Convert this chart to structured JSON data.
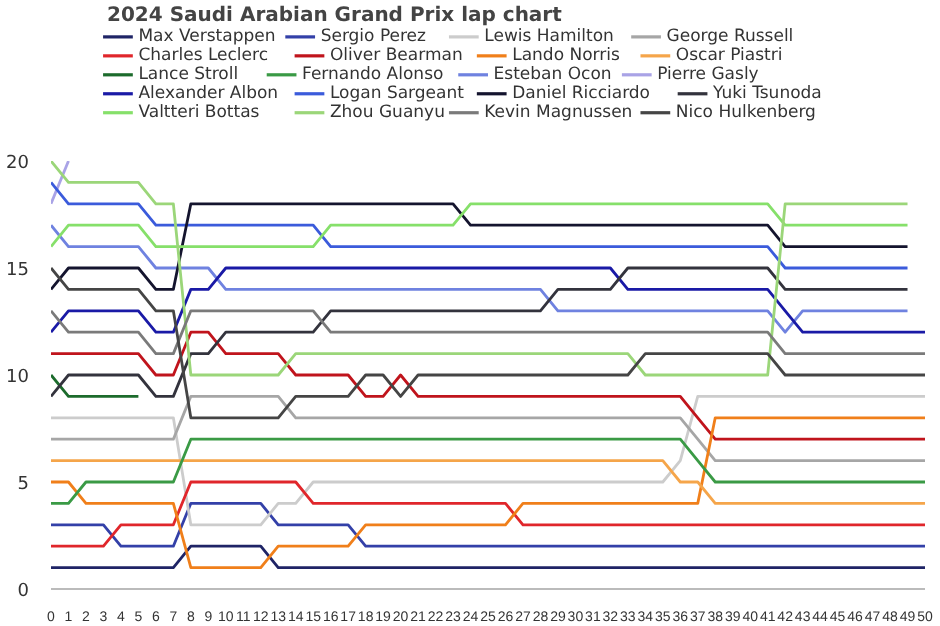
{
  "chart_data": {
    "type": "line",
    "title": "2024 Saudi Arabian Grand Prix lap chart",
    "legend": "top",
    "line_style": "solid",
    "x": [
      0,
      1,
      2,
      3,
      4,
      5,
      6,
      7,
      8,
      9,
      10,
      11,
      12,
      13,
      14,
      15,
      16,
      17,
      18,
      19,
      20,
      21,
      22,
      23,
      24,
      25,
      26,
      27,
      28,
      29,
      30,
      31,
      32,
      33,
      34,
      35,
      36,
      37,
      38,
      39,
      40,
      41,
      42,
      43,
      44,
      45,
      46,
      47,
      48,
      49,
      50
    ],
    "xlim": [
      0,
      50
    ],
    "xticks": [
      0,
      1,
      2,
      3,
      4,
      5,
      6,
      7,
      8,
      9,
      10,
      11,
      12,
      13,
      14,
      15,
      16,
      17,
      18,
      19,
      20,
      21,
      22,
      23,
      24,
      25,
      26,
      27,
      28,
      29,
      30,
      31,
      32,
      33,
      34,
      35,
      36,
      37,
      38,
      39,
      40,
      41,
      42,
      43,
      44,
      45,
      46,
      47,
      48,
      49,
      50
    ],
    "ylim": [
      0,
      20
    ],
    "yticks": [
      0,
      5,
      10,
      15,
      20
    ],
    "series": [
      {
        "name": "Max Verstappen",
        "color": "#1f2466",
        "values": [
          1,
          1,
          1,
          1,
          1,
          1,
          1,
          1,
          2,
          2,
          2,
          2,
          2,
          1,
          1,
          1,
          1,
          1,
          1,
          1,
          1,
          1,
          1,
          1,
          1,
          1,
          1,
          1,
          1,
          1,
          1,
          1,
          1,
          1,
          1,
          1,
          1,
          1,
          1,
          1,
          1,
          1,
          1,
          1,
          1,
          1,
          1,
          1,
          1,
          1,
          1
        ]
      },
      {
        "name": "Sergio Perez",
        "color": "#3340a8",
        "values": [
          3,
          3,
          3,
          3,
          2,
          2,
          2,
          2,
          4,
          4,
          4,
          4,
          4,
          3,
          3,
          3,
          3,
          3,
          2,
          2,
          2,
          2,
          2,
          2,
          2,
          2,
          2,
          2,
          2,
          2,
          2,
          2,
          2,
          2,
          2,
          2,
          2,
          2,
          2,
          2,
          2,
          2,
          2,
          2,
          2,
          2,
          2,
          2,
          2,
          2,
          2
        ]
      },
      {
        "name": "Lewis Hamilton",
        "color": "#cccccc",
        "values": [
          8,
          8,
          8,
          8,
          8,
          8,
          8,
          8,
          3,
          3,
          3,
          3,
          3,
          4,
          4,
          5,
          5,
          5,
          5,
          5,
          5,
          5,
          5,
          5,
          5,
          5,
          5,
          5,
          5,
          5,
          5,
          5,
          5,
          5,
          5,
          5,
          6,
          9,
          9,
          9,
          9,
          9,
          9,
          9,
          9,
          9,
          9,
          9,
          9,
          9,
          9
        ]
      },
      {
        "name": "George Russell",
        "color": "#a6a6a6",
        "values": [
          7,
          7,
          7,
          7,
          7,
          7,
          7,
          7,
          9,
          9,
          9,
          9,
          9,
          9,
          8,
          8,
          8,
          8,
          8,
          8,
          8,
          8,
          8,
          8,
          8,
          8,
          8,
          8,
          8,
          8,
          8,
          8,
          8,
          8,
          8,
          8,
          8,
          7,
          6,
          6,
          6,
          6,
          6,
          6,
          6,
          6,
          6,
          6,
          6,
          6,
          6
        ]
      },
      {
        "name": "Charles Leclerc",
        "color": "#e0262b",
        "values": [
          2,
          2,
          2,
          2,
          3,
          3,
          3,
          3,
          5,
          5,
          5,
          5,
          5,
          5,
          5,
          4,
          4,
          4,
          4,
          4,
          4,
          4,
          4,
          4,
          4,
          4,
          4,
          3,
          3,
          3,
          3,
          3,
          3,
          3,
          3,
          3,
          3,
          3,
          3,
          3,
          3,
          3,
          3,
          3,
          3,
          3,
          3,
          3,
          3,
          3,
          3
        ]
      },
      {
        "name": "Oliver Bearman",
        "color": "#c0141c",
        "values": [
          11,
          11,
          11,
          11,
          11,
          11,
          10,
          10,
          12,
          12,
          11,
          11,
          11,
          11,
          10,
          10,
          10,
          10,
          9,
          9,
          10,
          9,
          9,
          9,
          9,
          9,
          9,
          9,
          9,
          9,
          9,
          9,
          9,
          9,
          9,
          9,
          9,
          8,
          7,
          7,
          7,
          7,
          7,
          7,
          7,
          7,
          7,
          7,
          7,
          7,
          7
        ]
      },
      {
        "name": "Lando Norris",
        "color": "#f07f1a",
        "values": [
          5,
          5,
          4,
          4,
          4,
          4,
          4,
          4,
          1,
          1,
          1,
          1,
          1,
          2,
          2,
          2,
          2,
          2,
          3,
          3,
          3,
          3,
          3,
          3,
          3,
          3,
          3,
          4,
          4,
          4,
          4,
          4,
          4,
          4,
          4,
          4,
          4,
          4,
          8,
          8,
          8,
          8,
          8,
          8,
          8,
          8,
          8,
          8,
          8,
          8,
          8
        ]
      },
      {
        "name": "Oscar Piastri",
        "color": "#f5a54a",
        "values": [
          6,
          6,
          6,
          6,
          6,
          6,
          6,
          6,
          6,
          6,
          6,
          6,
          6,
          6,
          6,
          6,
          6,
          6,
          6,
          6,
          6,
          6,
          6,
          6,
          6,
          6,
          6,
          6,
          6,
          6,
          6,
          6,
          6,
          6,
          6,
          6,
          5,
          5,
          4,
          4,
          4,
          4,
          4,
          4,
          4,
          4,
          4,
          4,
          4,
          4,
          4
        ]
      },
      {
        "name": "Lance Stroll",
        "color": "#1c6b2c",
        "values": [
          10,
          9,
          9,
          9,
          9,
          9,
          null,
          null,
          null,
          null,
          null,
          null,
          null,
          null,
          null,
          null,
          null,
          null,
          null,
          null,
          null,
          null,
          null,
          null,
          null,
          null,
          null,
          null,
          null,
          null,
          null,
          null,
          null,
          null,
          null,
          null,
          null,
          null,
          null,
          null,
          null,
          null,
          null,
          null,
          null,
          null,
          null,
          null,
          null,
          null,
          null
        ]
      },
      {
        "name": "Fernando Alonso",
        "color": "#3a9a45",
        "values": [
          4,
          4,
          5,
          5,
          5,
          5,
          5,
          5,
          7,
          7,
          7,
          7,
          7,
          7,
          7,
          7,
          7,
          7,
          7,
          7,
          7,
          7,
          7,
          7,
          7,
          7,
          7,
          7,
          7,
          7,
          7,
          7,
          7,
          7,
          7,
          7,
          7,
          6,
          5,
          5,
          5,
          5,
          5,
          5,
          5,
          5,
          5,
          5,
          5,
          5,
          5
        ]
      },
      {
        "name": "Esteban Ocon",
        "color": "#6f82e0",
        "values": [
          17,
          16,
          16,
          16,
          16,
          16,
          15,
          15,
          15,
          15,
          14,
          14,
          14,
          14,
          14,
          14,
          14,
          14,
          14,
          14,
          14,
          14,
          14,
          14,
          14,
          14,
          14,
          14,
          14,
          13,
          13,
          13,
          13,
          13,
          13,
          13,
          13,
          13,
          13,
          13,
          13,
          13,
          12,
          13,
          13,
          13,
          13,
          13,
          13,
          13,
          null
        ]
      },
      {
        "name": "Pierre Gasly",
        "color": "#a9a3e6",
        "values": [
          18,
          20,
          null,
          null,
          null,
          null,
          null,
          null,
          null,
          null,
          null,
          null,
          null,
          null,
          null,
          null,
          null,
          null,
          null,
          null,
          null,
          null,
          null,
          null,
          null,
          null,
          null,
          null,
          null,
          null,
          null,
          null,
          null,
          null,
          null,
          null,
          null,
          null,
          null,
          null,
          null,
          null,
          null,
          null,
          null,
          null,
          null,
          null,
          null,
          null,
          null
        ]
      },
      {
        "name": "Alexander Albon",
        "color": "#1a1aa6",
        "values": [
          12,
          13,
          13,
          13,
          13,
          13,
          12,
          12,
          14,
          14,
          15,
          15,
          15,
          15,
          15,
          15,
          15,
          15,
          15,
          15,
          15,
          15,
          15,
          15,
          15,
          15,
          15,
          15,
          15,
          15,
          15,
          15,
          15,
          14,
          14,
          14,
          14,
          14,
          14,
          14,
          14,
          14,
          13,
          12,
          12,
          12,
          12,
          12,
          12,
          12,
          12
        ]
      },
      {
        "name": "Logan Sargeant",
        "color": "#3b5bdb",
        "values": [
          19,
          18,
          18,
          18,
          18,
          18,
          17,
          17,
          17,
          17,
          17,
          17,
          17,
          17,
          17,
          17,
          16,
          16,
          16,
          16,
          16,
          16,
          16,
          16,
          16,
          16,
          16,
          16,
          16,
          16,
          16,
          16,
          16,
          16,
          16,
          16,
          16,
          16,
          16,
          16,
          16,
          16,
          15,
          15,
          15,
          15,
          15,
          15,
          15,
          15,
          null
        ]
      },
      {
        "name": "Daniel Ricciardo",
        "color": "#14142e",
        "values": [
          14,
          15,
          15,
          15,
          15,
          15,
          14,
          14,
          18,
          18,
          18,
          18,
          18,
          18,
          18,
          18,
          18,
          18,
          18,
          18,
          18,
          18,
          18,
          18,
          17,
          17,
          17,
          17,
          17,
          17,
          17,
          17,
          17,
          17,
          17,
          17,
          17,
          17,
          17,
          17,
          17,
          17,
          16,
          16,
          16,
          16,
          16,
          16,
          16,
          16,
          null
        ]
      },
      {
        "name": "Yuki Tsunoda",
        "color": "#33333d",
        "values": [
          9,
          10,
          10,
          10,
          10,
          10,
          9,
          9,
          11,
          11,
          12,
          12,
          12,
          12,
          12,
          12,
          13,
          13,
          13,
          13,
          13,
          13,
          13,
          13,
          13,
          13,
          13,
          13,
          13,
          14,
          14,
          14,
          14,
          15,
          15,
          15,
          15,
          15,
          15,
          15,
          15,
          15,
          14,
          14,
          14,
          14,
          14,
          14,
          14,
          14,
          null
        ]
      },
      {
        "name": "Valtteri Bottas",
        "color": "#86e06a",
        "values": [
          16,
          17,
          17,
          17,
          17,
          17,
          16,
          16,
          16,
          16,
          16,
          16,
          16,
          16,
          16,
          16,
          17,
          17,
          17,
          17,
          17,
          17,
          17,
          17,
          18,
          18,
          18,
          18,
          18,
          18,
          18,
          18,
          18,
          18,
          18,
          18,
          18,
          18,
          18,
          18,
          18,
          18,
          17,
          17,
          17,
          17,
          17,
          17,
          17,
          17,
          null
        ]
      },
      {
        "name": "Zhou Guanyu",
        "color": "#9bd679",
        "values": [
          20,
          19,
          19,
          19,
          19,
          19,
          18,
          18,
          10,
          10,
          10,
          10,
          10,
          10,
          11,
          11,
          11,
          11,
          11,
          11,
          11,
          11,
          11,
          11,
          11,
          11,
          11,
          11,
          11,
          11,
          11,
          11,
          11,
          11,
          10,
          10,
          10,
          10,
          10,
          10,
          10,
          10,
          18,
          18,
          18,
          18,
          18,
          18,
          18,
          18,
          null
        ]
      },
      {
        "name": "Kevin Magnussen",
        "color": "#7a7a7a",
        "values": [
          13,
          12,
          12,
          12,
          12,
          12,
          11,
          11,
          13,
          13,
          13,
          13,
          13,
          13,
          13,
          13,
          12,
          12,
          12,
          12,
          12,
          12,
          12,
          12,
          12,
          12,
          12,
          12,
          12,
          12,
          12,
          12,
          12,
          12,
          12,
          12,
          12,
          12,
          12,
          12,
          12,
          12,
          11,
          11,
          11,
          11,
          11,
          11,
          11,
          11,
          11
        ]
      },
      {
        "name": "Nico Hulkenberg",
        "color": "#454545",
        "values": [
          15,
          14,
          14,
          14,
          14,
          14,
          13,
          13,
          8,
          8,
          8,
          8,
          8,
          8,
          9,
          9,
          9,
          9,
          10,
          10,
          9,
          10,
          10,
          10,
          10,
          10,
          10,
          10,
          10,
          10,
          10,
          10,
          10,
          10,
          11,
          11,
          11,
          11,
          11,
          11,
          11,
          11,
          10,
          10,
          10,
          10,
          10,
          10,
          10,
          10,
          10
        ]
      }
    ]
  }
}
